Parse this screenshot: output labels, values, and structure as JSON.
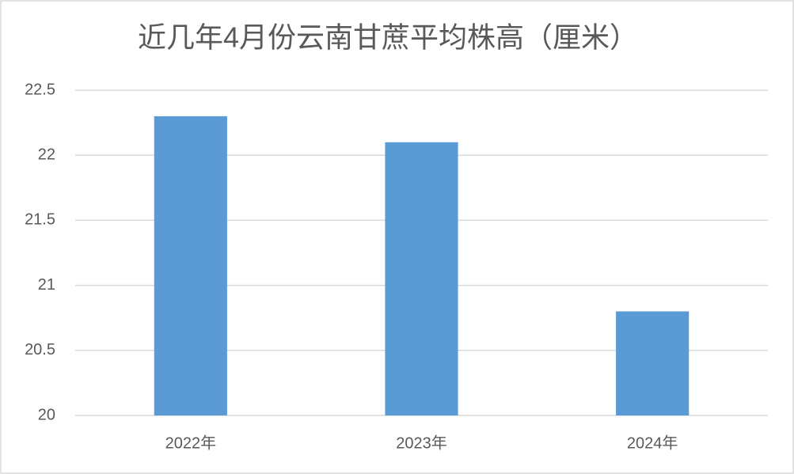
{
  "chart_data": {
    "type": "bar",
    "title": "近几年4月份云南甘蔗平均株高（厘米）",
    "categories": [
      "2022年",
      "2023年",
      "2024年"
    ],
    "values": [
      22.3,
      22.1,
      20.8
    ],
    "color": "#5b9bd5",
    "ylim": [
      20,
      22.5
    ],
    "yticks": [
      20,
      20.5,
      21,
      21.5,
      22,
      22.5
    ],
    "grid": true
  }
}
